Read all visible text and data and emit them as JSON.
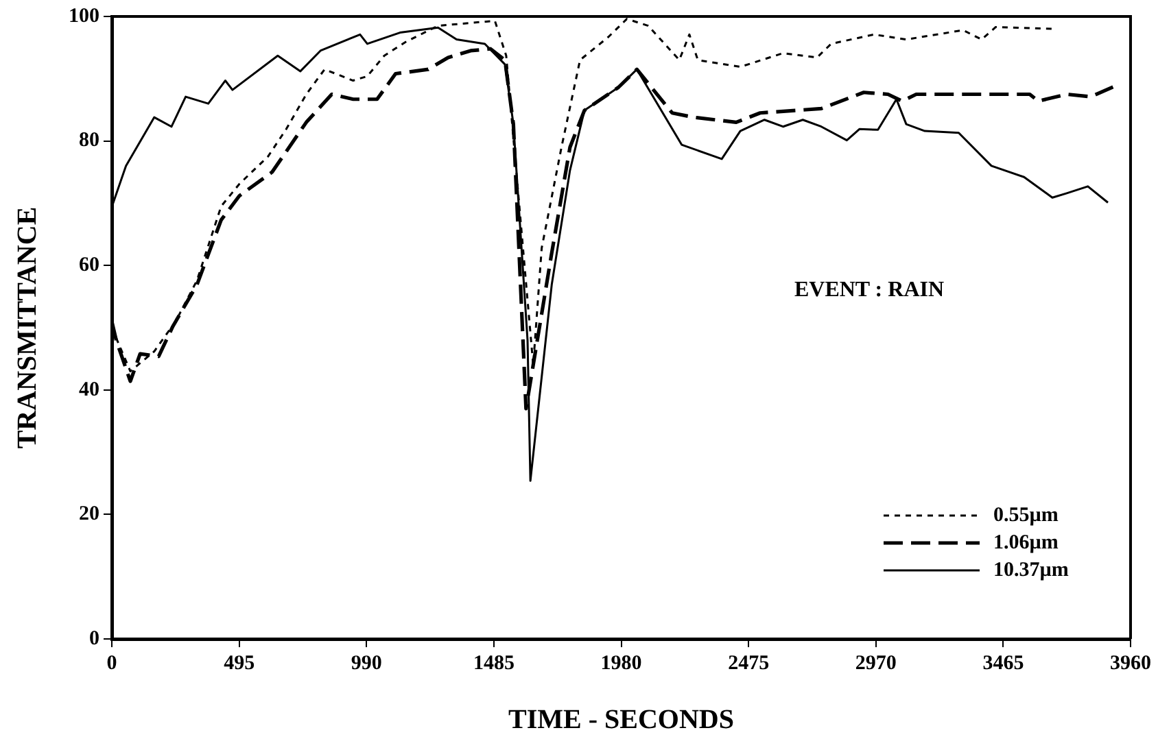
{
  "chart_data": {
    "type": "line",
    "xlabel": "TIME - SECONDS",
    "ylabel": "TRANSMITTANCE",
    "annotations": [
      "EVENT : RAIN"
    ],
    "xlim": [
      0,
      3960
    ],
    "xticks": [
      0,
      495,
      990,
      1485,
      1980,
      2475,
      2970,
      3465,
      3960
    ],
    "ylim": [
      0,
      100
    ],
    "yticks": [
      0,
      20,
      40,
      60,
      80,
      100
    ],
    "grid": false,
    "legend": "bottom right",
    "marker": "none",
    "series": [
      {
        "name": "0.55µm",
        "color": "#000000",
        "line_style": "dotted",
        "x": [
          0,
          72,
          165,
          248,
          331,
          425,
          496,
          607,
          678,
          756,
          827,
          938,
          993,
          1059,
          1142,
          1268,
          1379,
          1489,
          1533,
          1638,
          1671,
          1748,
          1820,
          1930,
          2002,
          2085,
          2206,
          2245,
          2278,
          2443,
          2609,
          2741,
          2796,
          2962,
          3088,
          3309,
          3381,
          3436,
          3656
        ],
        "values": [
          50,
          43,
          46.2,
          51,
          57.6,
          69.5,
          73.1,
          77.5,
          81.9,
          87.5,
          91.5,
          89.7,
          90.4,
          93.7,
          95.9,
          98.5,
          98.9,
          99.3,
          93.7,
          44,
          62.8,
          79,
          93,
          96.7,
          99.6,
          98.5,
          93,
          97.1,
          93,
          91.9,
          94.1,
          93.4,
          95.6,
          97.1,
          96.3,
          97.8,
          96.3,
          98.3,
          98
        ]
      },
      {
        "name": "1.06µm",
        "color": "#000000",
        "line_style": "dashed",
        "x": [
          0,
          17,
          72,
          110,
          182,
          237,
          331,
          425,
          496,
          623,
          678,
          756,
          855,
          938,
          1031,
          1103,
          1230,
          1307,
          1395,
          1472,
          1528,
          1561,
          1610,
          1710,
          1781,
          1837,
          1969,
          2041,
          2178,
          2261,
          2427,
          2520,
          2758,
          2923,
          3017,
          3072,
          3127,
          3270,
          3568,
          3601,
          3712,
          3805,
          3905
        ],
        "values": [
          51,
          48,
          41.4,
          45.8,
          45.4,
          50.2,
          56.9,
          67.3,
          71.2,
          75,
          78.3,
          83,
          87.5,
          86.7,
          86.7,
          90.8,
          91.5,
          93.4,
          94.5,
          94.8,
          93,
          82.7,
          37,
          62,
          79,
          84.9,
          88.6,
          91.5,
          84.5,
          83.8,
          83,
          84.5,
          85.2,
          87.8,
          87.5,
          86.4,
          87.5,
          87.5,
          87.5,
          86.4,
          87.5,
          87.1,
          88.9
        ]
      },
      {
        "name": "10.37µm",
        "color": "#000000",
        "line_style": "solid",
        "x": [
          0,
          55,
          165,
          232,
          287,
          375,
          441,
          469,
          645,
          733,
          811,
          965,
          993,
          1120,
          1268,
          1340,
          1450,
          1528,
          1561,
          1616,
          1627,
          1710,
          1781,
          1837,
          1969,
          2041,
          2215,
          2371,
          2443,
          2537,
          2609,
          2686,
          2758,
          2857,
          2906,
          2978,
          3050,
          3088,
          3160,
          3292,
          3419,
          3546,
          3656,
          3712,
          3794,
          3872
        ],
        "values": [
          69.4,
          76,
          83.8,
          82.3,
          87.1,
          86,
          89.7,
          88.2,
          93.7,
          91.2,
          94.5,
          97.1,
          95.6,
          97.4,
          98.2,
          96.3,
          95.6,
          92.3,
          82.7,
          48,
          25.4,
          56.9,
          75.3,
          84.9,
          88.6,
          91.5,
          79.4,
          77.1,
          81.6,
          83.4,
          82.3,
          83.4,
          82.3,
          80.1,
          81.9,
          81.8,
          86.7,
          82.7,
          81.6,
          81.3,
          76,
          74.2,
          70.9,
          71.6,
          72.7,
          70.1
        ]
      }
    ]
  }
}
